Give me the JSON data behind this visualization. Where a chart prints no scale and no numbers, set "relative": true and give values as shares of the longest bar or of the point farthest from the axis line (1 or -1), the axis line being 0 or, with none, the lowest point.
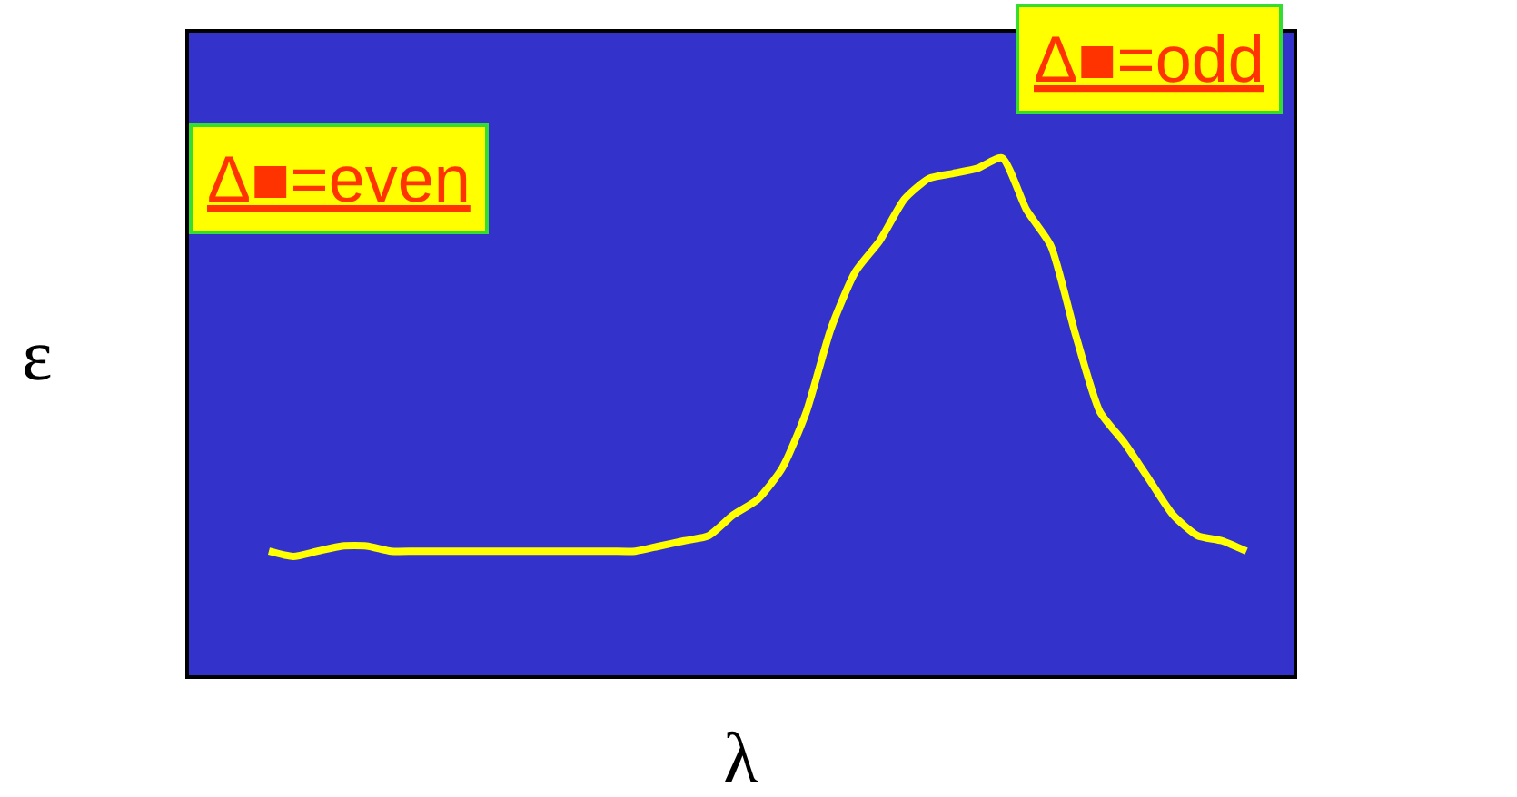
{
  "chart_data": {
    "type": "line",
    "relative": true,
    "xlabel": "λ",
    "ylabel": "ε",
    "color": "#ffff00",
    "grid": false,
    "legend": false,
    "marker": "none",
    "line_style": "solid",
    "categories": [
      null,
      null,
      null,
      null,
      null,
      null,
      null,
      null,
      null,
      null,
      null,
      null,
      null,
      null,
      null,
      null,
      null,
      null,
      null,
      null,
      null,
      null,
      null,
      null,
      null,
      null,
      null,
      null,
      null,
      null,
      null,
      null,
      null,
      null,
      null,
      null,
      null,
      null,
      null,
      null,
      null
    ],
    "values": [
      0.24,
      0.23,
      0.24,
      0.25,
      0.25,
      0.24,
      0.24,
      0.24,
      0.24,
      0.24,
      0.24,
      0.24,
      0.24,
      0.24,
      0.24,
      0.24,
      0.25,
      0.26,
      0.27,
      0.31,
      0.34,
      0.4,
      0.51,
      0.67,
      0.78,
      0.84,
      0.92,
      0.96,
      0.97,
      0.98,
      1.0,
      0.9,
      0.83,
      0.66,
      0.51,
      0.45,
      0.38,
      0.31,
      0.27,
      0.26,
      0.24
    ],
    "annotations": [
      "Δ■=even",
      "Δ■=odd"
    ]
  }
}
